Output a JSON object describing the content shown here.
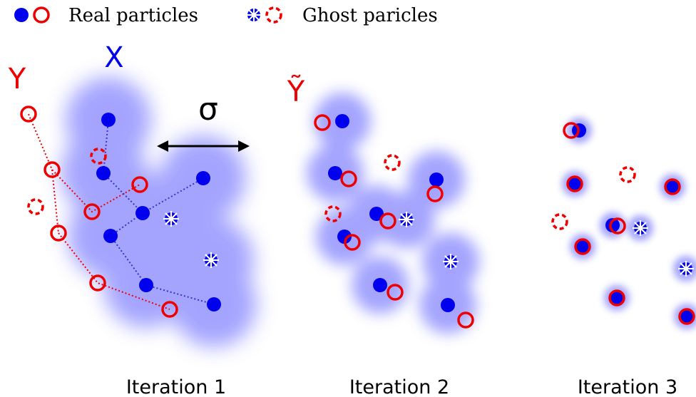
{
  "legend": {
    "real": "Real particles",
    "ghost": "Ghost paricles"
  },
  "labels": {
    "x": "X",
    "y": "Y",
    "y_tilde": "Ỹ",
    "sigma": "σ"
  },
  "iterations": [
    "Iteration 1",
    "Iteration 2",
    "Iteration 3"
  ]
}
